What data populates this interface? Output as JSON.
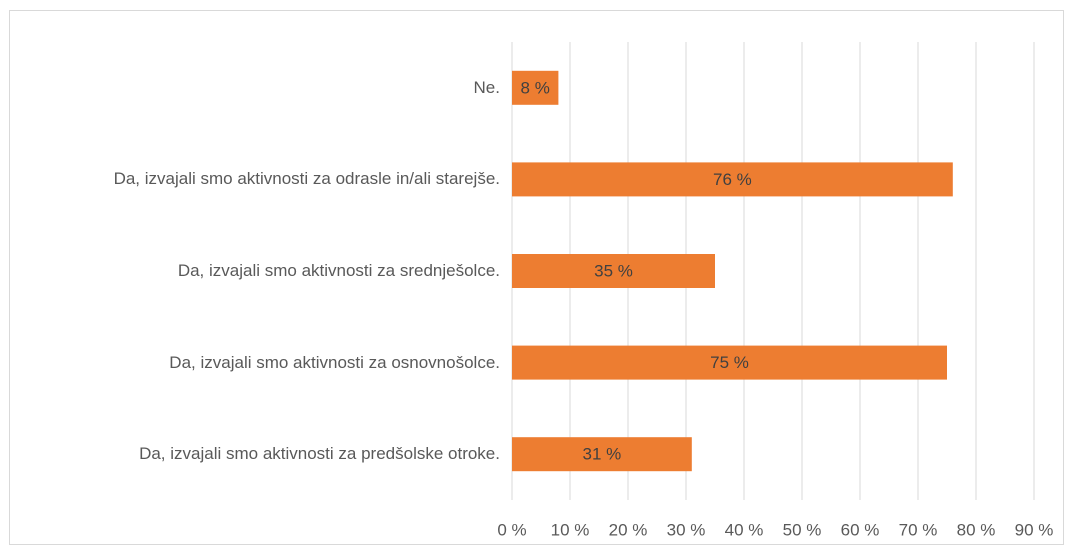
{
  "chart_data": {
    "type": "hbar",
    "categories": [
      "Ne.",
      "Da, izvajali smo aktivnosti za odrasle in/ali starejše.",
      "Da, izvajali smo aktivnosti za srednješolce.",
      "Da, izvajali smo aktivnosti za osnovnošolce.",
      "Da, izvajali smo aktivnosti za predšolske otroke."
    ],
    "values": [
      8,
      76,
      35,
      75,
      31
    ],
    "value_labels": [
      "8 %",
      "76 %",
      "35 %",
      "75 %",
      "31 %"
    ],
    "color": "#ed7d31",
    "xlim": [
      0,
      90
    ],
    "xticks": [
      {
        "value": 0,
        "label": "0 %"
      },
      {
        "value": 10,
        "label": "10 %"
      },
      {
        "value": 20,
        "label": "20 %"
      },
      {
        "value": 30,
        "label": "30 %"
      },
      {
        "value": 40,
        "label": "40 %"
      },
      {
        "value": 50,
        "label": "50 %"
      },
      {
        "value": 60,
        "label": "60 %"
      },
      {
        "value": 70,
        "label": "70 %"
      },
      {
        "value": 80,
        "label": "80 %"
      },
      {
        "value": 90,
        "label": "90 %"
      }
    ],
    "grid": true
  }
}
